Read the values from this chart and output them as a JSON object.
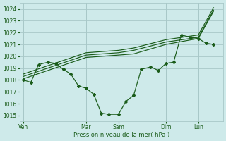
{
  "xlabel": "Pression niveau de la mer( hPa )",
  "bg_color": "#ceeaea",
  "grid_color": "#a8c8c8",
  "line_color": "#1a5c1a",
  "ylim": [
    1014.5,
    1024.5
  ],
  "yticks": [
    1015,
    1016,
    1017,
    1018,
    1019,
    1020,
    1021,
    1022,
    1023,
    1024
  ],
  "day_labels": [
    "Ven",
    "",
    "Mar",
    "Sam",
    "",
    "Dim",
    "",
    "Lun"
  ],
  "xlim": [
    -0.02,
    1.05
  ],
  "vline_positions": [
    0.0,
    0.33,
    0.5,
    0.75,
    0.92
  ],
  "vline_labels": [
    "Ven",
    "Mar",
    "Sam",
    "Dim",
    "Lun"
  ],
  "s1_x": [
    0.0,
    0.04,
    0.08,
    0.13,
    0.17,
    0.21,
    0.25,
    0.29,
    0.33,
    0.37,
    0.41,
    0.45,
    0.5,
    0.54,
    0.58,
    0.62,
    0.67,
    0.71,
    0.75,
    0.79,
    0.83,
    0.88,
    0.92,
    0.96,
    1.0
  ],
  "s1_y": [
    1018.0,
    1017.8,
    1019.3,
    1019.5,
    1019.4,
    1018.9,
    1018.5,
    1017.5,
    1017.3,
    1016.8,
    1015.2,
    1015.1,
    1015.1,
    1016.2,
    1016.7,
    1018.9,
    1019.1,
    1018.8,
    1019.4,
    1019.5,
    1021.8,
    1021.6,
    1021.5,
    1021.1,
    1021.0
  ],
  "s2_x": [
    0.0,
    0.33,
    0.5,
    0.58,
    0.75,
    0.92,
    1.0
  ],
  "s2_y": [
    1018.1,
    1019.9,
    1020.1,
    1020.2,
    1021.0,
    1021.5,
    1023.8
  ],
  "s3_x": [
    0.0,
    0.33,
    0.5,
    0.58,
    0.75,
    0.92,
    1.0
  ],
  "s3_y": [
    1018.3,
    1020.1,
    1020.3,
    1020.5,
    1021.2,
    1021.6,
    1023.9
  ],
  "s4_x": [
    0.0,
    0.33,
    0.5,
    0.58,
    0.75,
    0.92,
    1.0
  ],
  "s4_y": [
    1018.5,
    1020.3,
    1020.5,
    1020.7,
    1021.4,
    1021.8,
    1024.1
  ]
}
